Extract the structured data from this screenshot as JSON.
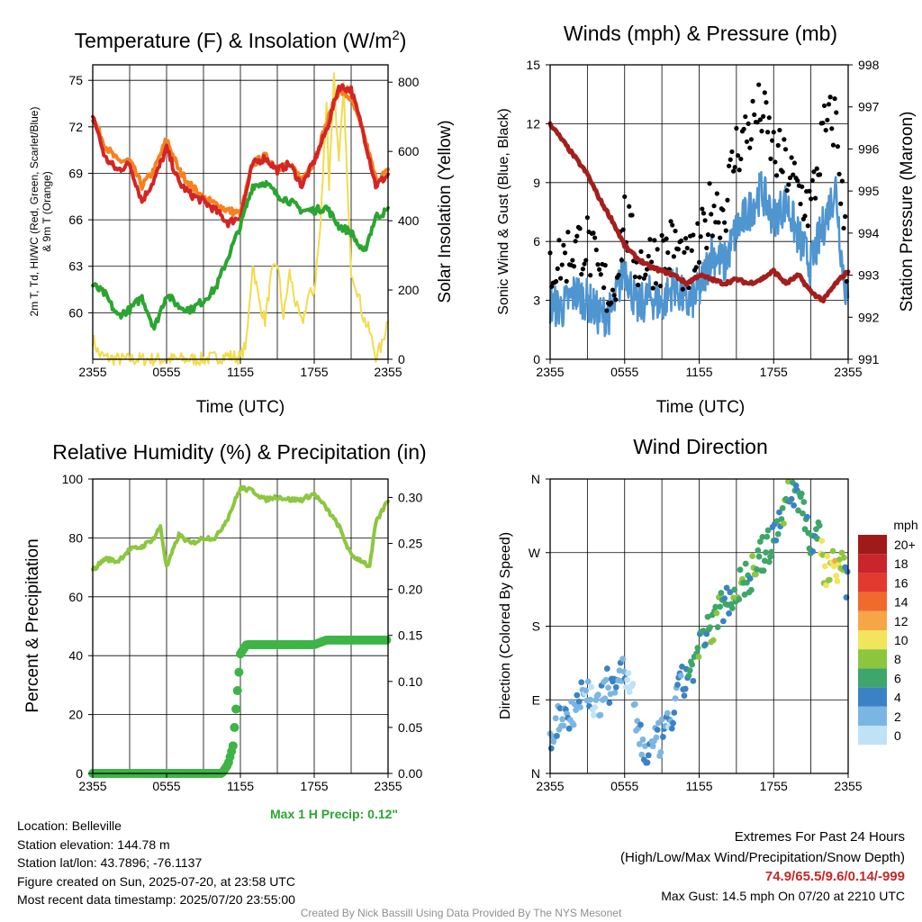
{
  "colors": {
    "temperature": "#d32525",
    "apparent": "#2ba531",
    "temp9m": "#f5821f",
    "insolation": "#f2dc4c",
    "sonic_wind": "#4f95d0",
    "gust": "#000000",
    "pressure": "#a41e1e",
    "rh": "#8dc63f",
    "precip": "#3cb545"
  },
  "info": {
    "location": "Location: Belleville",
    "elevation": "Station elevation: 144.78 m",
    "latlon": "Station lat/lon: 43.7896; -76.1137",
    "created": "Figure created on Sun, 2025-07-20, at 23:58 UTC",
    "recent": "Most recent data timestamp: 2025/07/20 23:55:00",
    "extremes_title": "Extremes For Past 24 Hours",
    "extremes_fields": "(High/Low/Max Wind/Precipitation/Snow Depth)",
    "extremes_values": "74.9/65.5/9.6/0.14/-999",
    "max_gust": "Max Gust: 14.5 mph On 07/20 at 2210 UTC",
    "credit": "Created By Nick Bassill Using Data Provided By The NYS Mesonet"
  },
  "chart_data": [
    {
      "type": "line",
      "title": "Temperature (F) & Insolation (W/m²)",
      "xlabel": "Time (UTC)",
      "ylabel_left_line1": "2m T, Td, HI/WC (Red, Green, Scarlet/Blue)",
      "ylabel_left_line2": "& 9m T (Orange)",
      "ylabel_right": "Solar Insolation (Yellow)",
      "xticks": [
        "2355",
        "0555",
        "1155",
        "1755",
        "2355"
      ],
      "ylim": [
        57,
        76
      ],
      "yticks": [
        60,
        63,
        66,
        69,
        72,
        75
      ],
      "ylim_right": [
        0,
        850
      ],
      "yticks_right": [
        0,
        200,
        400,
        600,
        800
      ],
      "series": [
        {
          "name": "2m T",
          "color": "#d32525",
          "hours": [
            0,
            1,
            2,
            3,
            4,
            5,
            6,
            7,
            8,
            9,
            10,
            11,
            12,
            13,
            14,
            15,
            16,
            17,
            18,
            19,
            20,
            21,
            22,
            23,
            24
          ],
          "values": [
            72.8,
            70,
            69.2,
            69.6,
            67.2,
            68.6,
            70.6,
            68.4,
            67.6,
            67.2,
            66.6,
            65.8,
            66.2,
            69.6,
            70,
            69.2,
            69.6,
            68.2,
            69.8,
            71.8,
            74.6,
            74.4,
            71.6,
            68.2,
            68.9
          ]
        },
        {
          "name": "9m T",
          "color": "#f5821f",
          "hours": [
            0,
            1,
            2,
            3,
            4,
            5,
            6,
            7,
            8,
            9,
            10,
            11,
            12,
            13,
            14,
            15,
            16,
            17,
            18,
            19,
            20,
            21,
            22,
            23,
            24
          ],
          "values": [
            72.6,
            70.8,
            69.8,
            69.8,
            68.2,
            69.2,
            71.2,
            69.2,
            68.2,
            67.4,
            67,
            66.6,
            66.4,
            69.6,
            70.1,
            69.4,
            69.5,
            68.6,
            69.8,
            72.2,
            74.4,
            73.8,
            71.6,
            68.6,
            69.1
          ]
        },
        {
          "name": "Td",
          "color": "#2ba531",
          "hours": [
            0,
            1,
            2,
            3,
            4,
            5,
            6,
            7,
            8,
            9,
            10,
            11,
            12,
            13,
            14,
            15,
            16,
            17,
            18,
            19,
            20,
            21,
            22,
            23,
            24
          ],
          "values": [
            61.8,
            61.2,
            59.8,
            60.2,
            61,
            59,
            61.2,
            60.4,
            60.2,
            60.8,
            61.6,
            63.6,
            65.6,
            68.2,
            68.4,
            67.6,
            67.2,
            66.6,
            66.6,
            66.8,
            65.6,
            65.2,
            63.8,
            66.2,
            66.6
          ]
        },
        {
          "name": "Insolation",
          "color": "#f2dc4c",
          "axis": "right",
          "hours": [
            0,
            0.5,
            1,
            2,
            3,
            4,
            5,
            6,
            7,
            8,
            9,
            10,
            11,
            12,
            12.5,
            13,
            13.5,
            14,
            14.5,
            15,
            15.5,
            16,
            16.5,
            17,
            17.5,
            18,
            18.5,
            19,
            19.2,
            19.6,
            20,
            20.4,
            20.8,
            21,
            21.5,
            22,
            22.5,
            23,
            23.5,
            24
          ],
          "values": [
            60,
            15,
            5,
            0,
            0,
            0,
            0,
            0,
            0,
            0,
            0,
            5,
            10,
            5,
            50,
            280,
            170,
            110,
            240,
            280,
            120,
            250,
            160,
            100,
            180,
            200,
            380,
            750,
            500,
            820,
            560,
            780,
            400,
            260,
            200,
            120,
            80,
            10,
            40,
            120
          ]
        }
      ]
    },
    {
      "type": "line",
      "title": "Winds (mph) & Pressure (mb)",
      "xlabel": "Time (UTC)",
      "ylabel_left": "Sonic Wind & Gust (Blue, Black)",
      "ylabel_right": "Station Pressure (Maroon)",
      "xticks": [
        "2355",
        "0555",
        "1155",
        "1755",
        "2355"
      ],
      "ylim": [
        0,
        15
      ],
      "yticks": [
        0,
        3,
        6,
        9,
        12,
        15
      ],
      "ylim_right": [
        991,
        998
      ],
      "yticks_right": [
        991,
        992,
        993,
        994,
        995,
        996,
        997,
        998
      ],
      "series": [
        {
          "name": "Sonic Wind",
          "color": "#4f95d0",
          "hours": [
            0,
            1,
            2,
            3,
            4,
            5,
            6,
            7,
            8,
            9,
            10,
            11,
            12,
            13,
            14,
            15,
            16,
            17,
            18,
            19,
            20,
            21,
            22,
            23,
            23.5,
            24
          ],
          "values": [
            2.8,
            2.6,
            3.4,
            3,
            2.2,
            2.4,
            4.8,
            2.6,
            3.2,
            2.8,
            3.8,
            2.8,
            3.4,
            5.5,
            4.8,
            6.6,
            7.5,
            8.6,
            7.2,
            8,
            6.2,
            4.8,
            6.8,
            8.8,
            5,
            2.6
          ]
        },
        {
          "name": "Gust",
          "color": "#000000",
          "style": "points",
          "hours": [
            0,
            1,
            2,
            3,
            4,
            5,
            6,
            7,
            8,
            9,
            10,
            11,
            12,
            13,
            14,
            15,
            16,
            17,
            18,
            19,
            20,
            21,
            22,
            23,
            24
          ],
          "values": [
            4.4,
            4.8,
            5.4,
            5.6,
            3.6,
            3,
            6.8,
            4.6,
            4.8,
            5,
            5.6,
            4.2,
            5.2,
            7.6,
            7.2,
            10.4,
            11.4,
            12.4,
            10.2,
            9.4,
            8.2,
            7.4,
            11.2,
            12,
            3.8
          ]
        },
        {
          "name": "Station Pressure",
          "color": "#a41e1e",
          "axis": "right",
          "hours": [
            0,
            1,
            2,
            3,
            4,
            5,
            6,
            7,
            8,
            9,
            10,
            11,
            12,
            13,
            14,
            15,
            16,
            17,
            18,
            19,
            20,
            21,
            22,
            23,
            24
          ],
          "values": [
            996.6,
            996.2,
            995.8,
            995.4,
            994.8,
            994.3,
            993.7,
            993.4,
            993.2,
            993.1,
            993,
            992.8,
            993,
            992.9,
            992.8,
            992.9,
            992.8,
            992.9,
            993.1,
            992.8,
            993,
            992.6,
            992.4,
            992.8,
            993.1
          ]
        }
      ]
    },
    {
      "type": "line",
      "title": "Relative Humidity (%) & Precipitation (in)",
      "ylabel_left": "Percent & Precipitation",
      "xticks": [
        "2355",
        "0555",
        "1155",
        "1755",
        "2355"
      ],
      "ylim": [
        0,
        100
      ],
      "yticks": [
        0,
        20,
        40,
        60,
        80,
        100
      ],
      "ylim_right": [
        0,
        0.32
      ],
      "yticks_right": [
        0,
        0.05,
        0.1,
        0.15,
        0.2,
        0.25,
        0.3
      ],
      "max_precip_label": "Max 1 H Precip: 0.12\"",
      "series": [
        {
          "name": "RH",
          "color": "#8dc63f",
          "hours": [
            0,
            1,
            2,
            3,
            4,
            5,
            5.5,
            6,
            7,
            8,
            9,
            10,
            11,
            12,
            13,
            14,
            15,
            16,
            17,
            18,
            19,
            20,
            21,
            22,
            22.5,
            23,
            24
          ],
          "values": [
            69,
            73,
            72,
            76,
            77,
            80,
            84,
            70,
            81,
            78,
            80,
            80,
            87,
            97,
            96,
            93,
            94,
            93,
            93,
            95,
            90,
            84,
            74,
            72,
            70,
            85,
            93
          ]
        },
        {
          "name": "Precipitation",
          "color": "#3cb545",
          "axis": "right",
          "hours": [
            0,
            10.5,
            11,
            11.4,
            11.7,
            12,
            12.5,
            15,
            18,
            19,
            24
          ],
          "values": [
            0,
            0,
            0.01,
            0.03,
            0.08,
            0.13,
            0.14,
            0.14,
            0.14,
            0.145,
            0.145
          ]
        }
      ]
    },
    {
      "type": "scatter",
      "title": "Wind Direction",
      "ylabel_left": "Direction (Colored By Speed)",
      "xticks": [
        "2355",
        "0555",
        "1155",
        "1755",
        "2355"
      ],
      "yticks": [
        "N",
        "E",
        "S",
        "W",
        "N"
      ],
      "ylim": [
        0,
        360
      ],
      "legend_title": "mph",
      "legend": [
        "20+",
        "18",
        "16",
        "14",
        "12",
        "10",
        "8",
        "6",
        "4",
        "2",
        "0"
      ],
      "legend_colors": [
        "#a01a1a",
        "#c8262a",
        "#e23a2e",
        "#f06a2e",
        "#f7a646",
        "#f2e45c",
        "#8cc63f",
        "#3ea66a",
        "#3b82c4",
        "#7bb6e3",
        "#bfe2f6"
      ],
      "hours": [
        0,
        0.5,
        1,
        1.5,
        2,
        2.5,
        3,
        3.5,
        4,
        4.5,
        5,
        5.5,
        6,
        6.5,
        7,
        7.5,
        8,
        8.5,
        9,
        9.5,
        10,
        10.5,
        11,
        11.5,
        12,
        12.5,
        13,
        13.5,
        14,
        14.5,
        15,
        15.5,
        16,
        16.5,
        17,
        17.5,
        18,
        18.5,
        19,
        19.5,
        20,
        20.5,
        21,
        21.5,
        22,
        22.5,
        23,
        23.5,
        24
      ],
      "directions": [
        45,
        60,
        75,
        70,
        85,
        95,
        100,
        90,
        80,
        105,
        110,
        120,
        125,
        100,
        60,
        30,
        25,
        35,
        45,
        55,
        80,
        105,
        120,
        130,
        150,
        165,
        180,
        195,
        210,
        215,
        225,
        235,
        240,
        250,
        265,
        275,
        285,
        310,
        335,
        345,
        340,
        320,
        280,
        300,
        255,
        250,
        260,
        250,
        230
      ],
      "speeds": [
        2,
        3,
        2,
        3,
        2,
        3,
        2,
        1,
        2,
        3,
        4,
        3,
        2,
        1,
        2,
        2,
        3,
        2,
        3,
        2,
        4,
        3,
        4,
        5,
        6,
        5,
        6,
        7,
        5,
        6,
        7,
        7,
        6,
        7,
        6,
        7,
        5,
        6,
        7,
        5,
        6,
        5,
        5,
        6,
        9,
        8,
        10,
        8,
        3
      ]
    }
  ]
}
